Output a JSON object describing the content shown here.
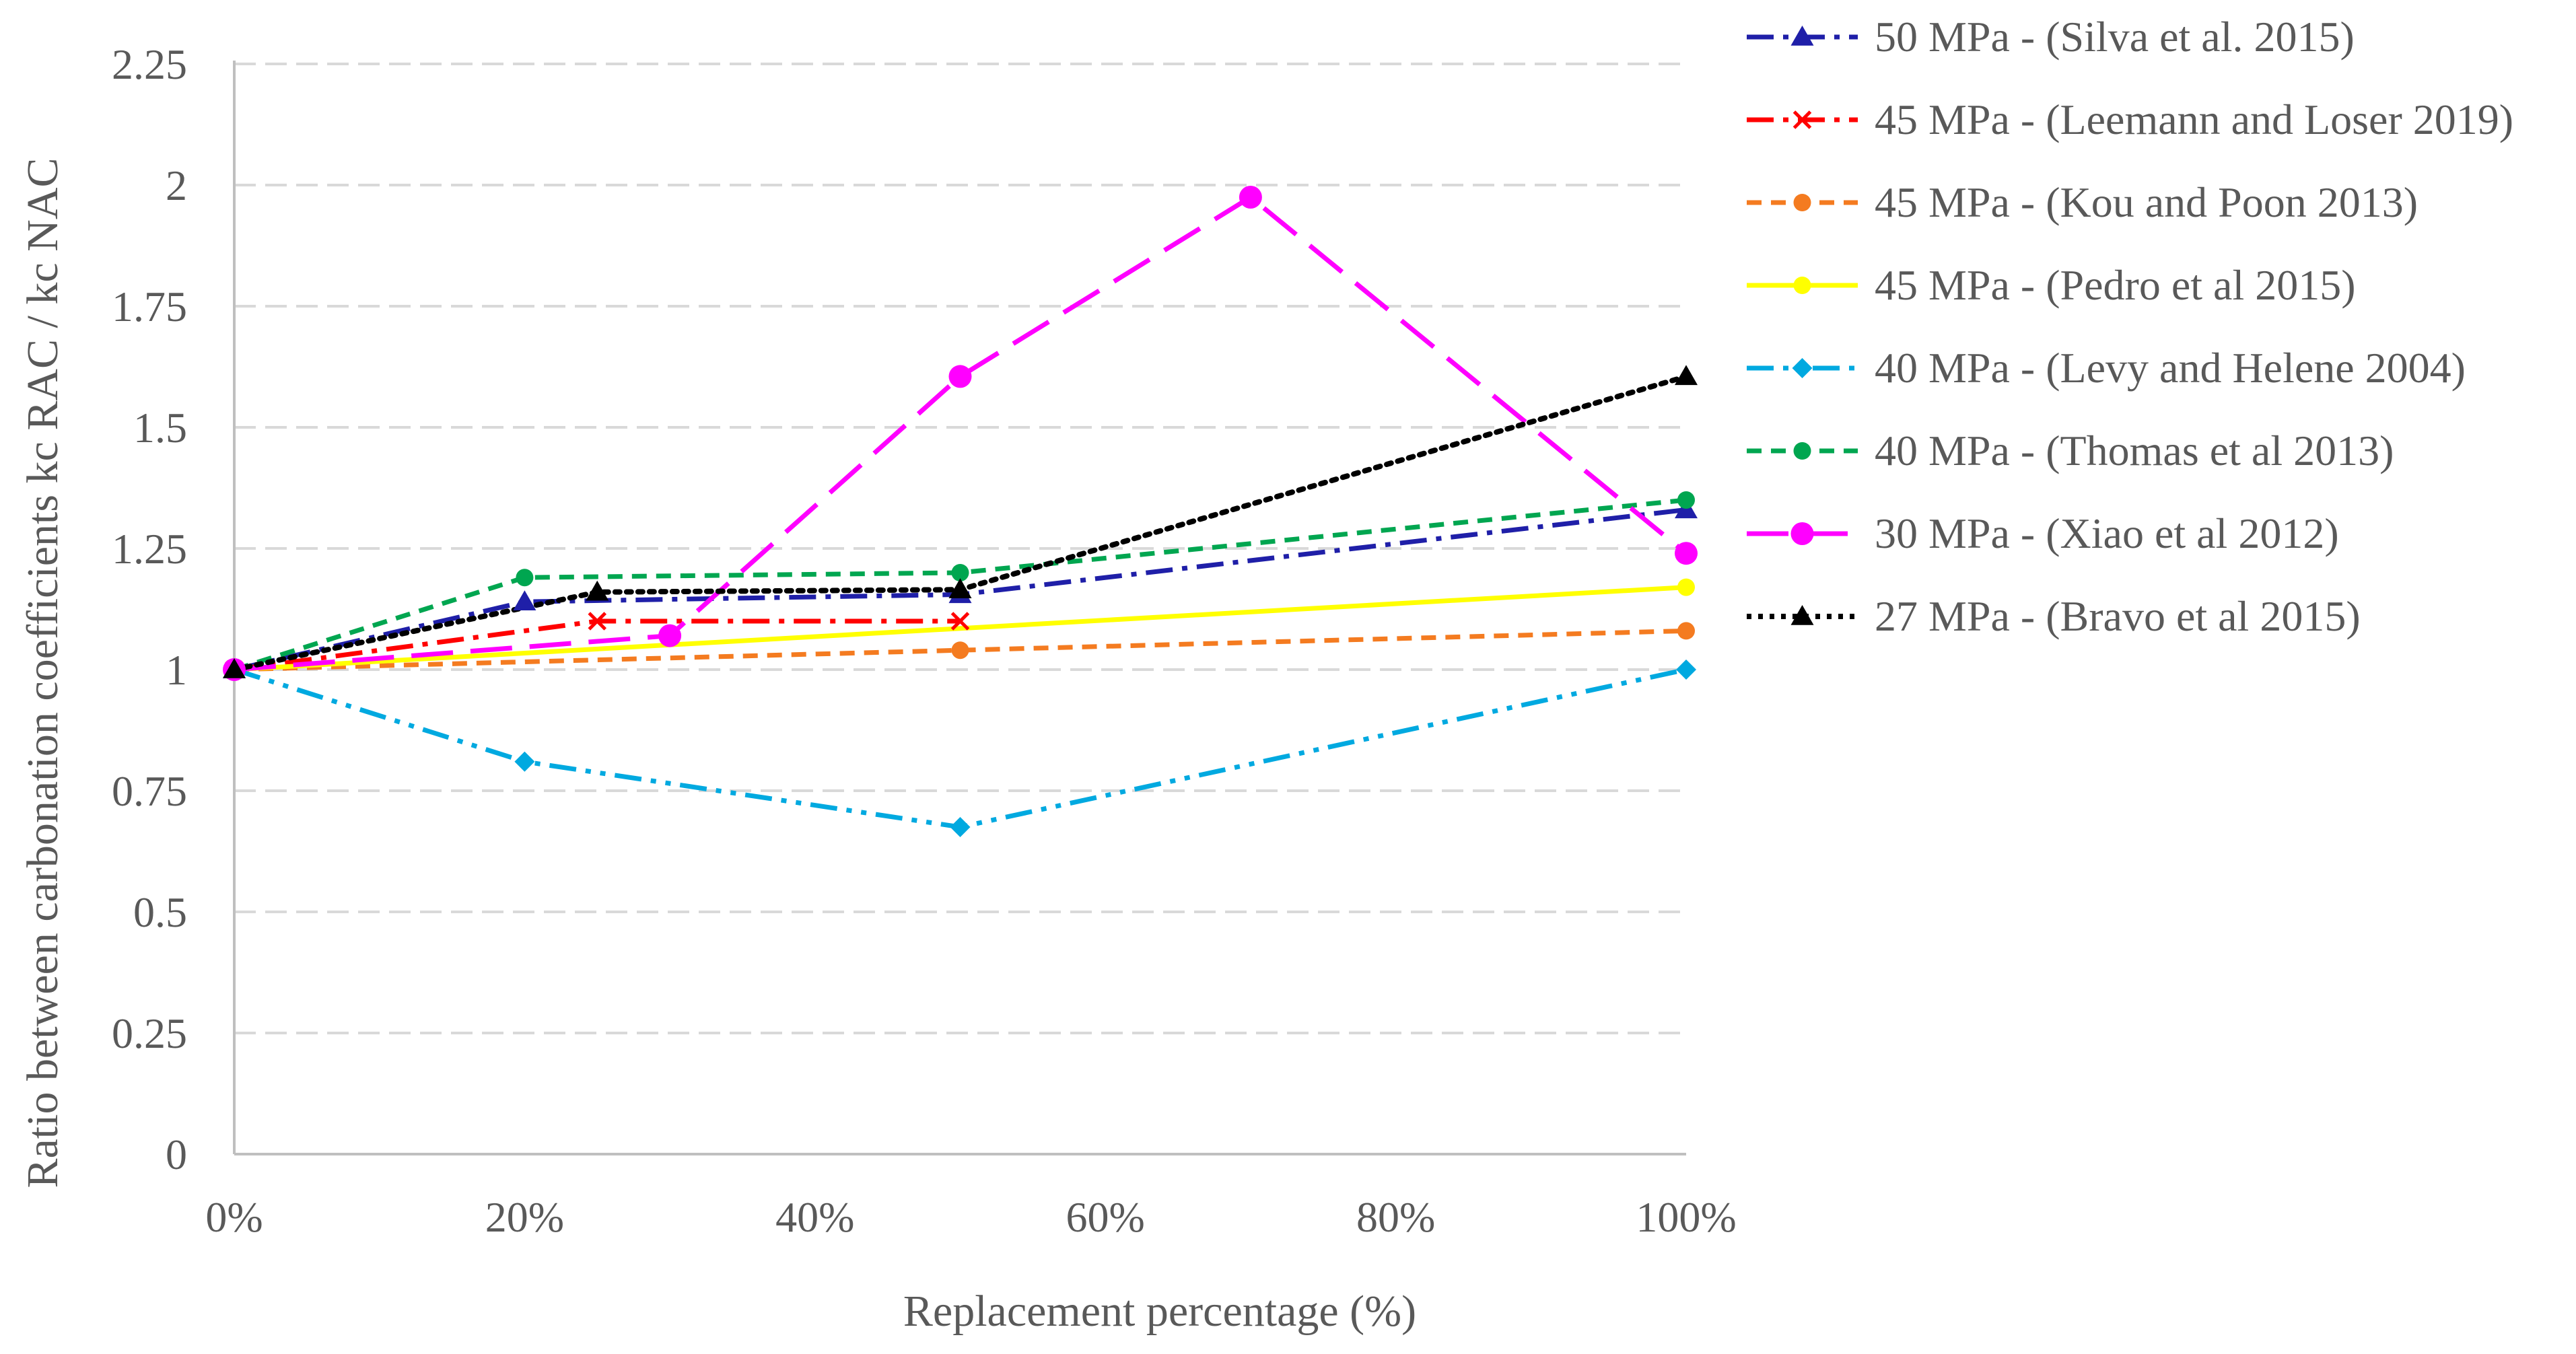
{
  "chart_data": {
    "type": "line",
    "title": "",
    "xlabel": "Replacement percentage (%)",
    "ylabel": "Ratio between carbonation coefficients kc RAC / kc NAC",
    "xlim": [
      0,
      100
    ],
    "ylim": [
      0,
      2.25
    ],
    "x_ticks": [
      0,
      20,
      40,
      60,
      80,
      100
    ],
    "x_tick_labels": [
      "0%",
      "20%",
      "40%",
      "60%",
      "80%",
      "100%"
    ],
    "y_ticks": [
      0,
      0.25,
      0.5,
      0.75,
      1,
      1.25,
      1.5,
      1.75,
      2,
      2.25
    ],
    "y_tick_labels": [
      "0",
      "0.25",
      "0.5",
      "0.75",
      "1",
      "1.25",
      "1.5",
      "1.75",
      "2",
      "2.25"
    ],
    "grid": "horizontal dashed",
    "legend_position": "right",
    "series": [
      {
        "name": "50 MPa - (Silva et al. 2015)",
        "color": "#1f1fa8",
        "dash": "dashdot",
        "marker": "triangle",
        "points": [
          [
            0,
            1.0
          ],
          [
            20,
            1.14
          ],
          [
            50,
            1.155
          ],
          [
            100,
            1.33
          ]
        ]
      },
      {
        "name": "45 MPa - (Leemann and Loser 2019)",
        "color": "#ff0000",
        "dash": "dashdot",
        "marker": "x",
        "points": [
          [
            0,
            1.0
          ],
          [
            25,
            1.1
          ],
          [
            50,
            1.1
          ]
        ]
      },
      {
        "name": "45 MPa - (Kou and Poon 2013)",
        "color": "#f47b20",
        "dash": "dash",
        "marker": "circle",
        "points": [
          [
            0,
            1.0
          ],
          [
            50,
            1.04
          ],
          [
            100,
            1.08
          ]
        ]
      },
      {
        "name": "45 MPa - (Pedro et al 2015)",
        "color": "#ffff00",
        "dash": "solid",
        "marker": "circle",
        "points": [
          [
            0,
            1.0
          ],
          [
            100,
            1.17
          ]
        ]
      },
      {
        "name": "40 MPa - (Levy and Helene 2004)",
        "color": "#00a9e0",
        "dash": "dashdotdot",
        "marker": "diamond",
        "points": [
          [
            0,
            1.0
          ],
          [
            20,
            0.81
          ],
          [
            50,
            0.675
          ],
          [
            100,
            1.0
          ]
        ]
      },
      {
        "name": "40 MPa - (Thomas et al 2013)",
        "color": "#00a650",
        "dash": "dash",
        "marker": "circle",
        "points": [
          [
            0,
            1.0
          ],
          [
            20,
            1.19
          ],
          [
            50,
            1.2
          ],
          [
            100,
            1.35
          ]
        ]
      },
      {
        "name": "30 MPa - (Xiao et al 2012)",
        "color": "#ff00ff",
        "dash": "longdash",
        "marker": "bigcircle",
        "points": [
          [
            0,
            1.0
          ],
          [
            30,
            1.07
          ],
          [
            50,
            1.605
          ],
          [
            70,
            1.975
          ],
          [
            100,
            1.24
          ]
        ]
      },
      {
        "name": "27 MPa - (Bravo et al 2015)",
        "color": "#000000",
        "dash": "dot",
        "marker": "triangle",
        "points": [
          [
            0,
            1.0
          ],
          [
            25,
            1.16
          ],
          [
            50,
            1.165
          ],
          [
            100,
            1.605
          ]
        ]
      }
    ]
  }
}
